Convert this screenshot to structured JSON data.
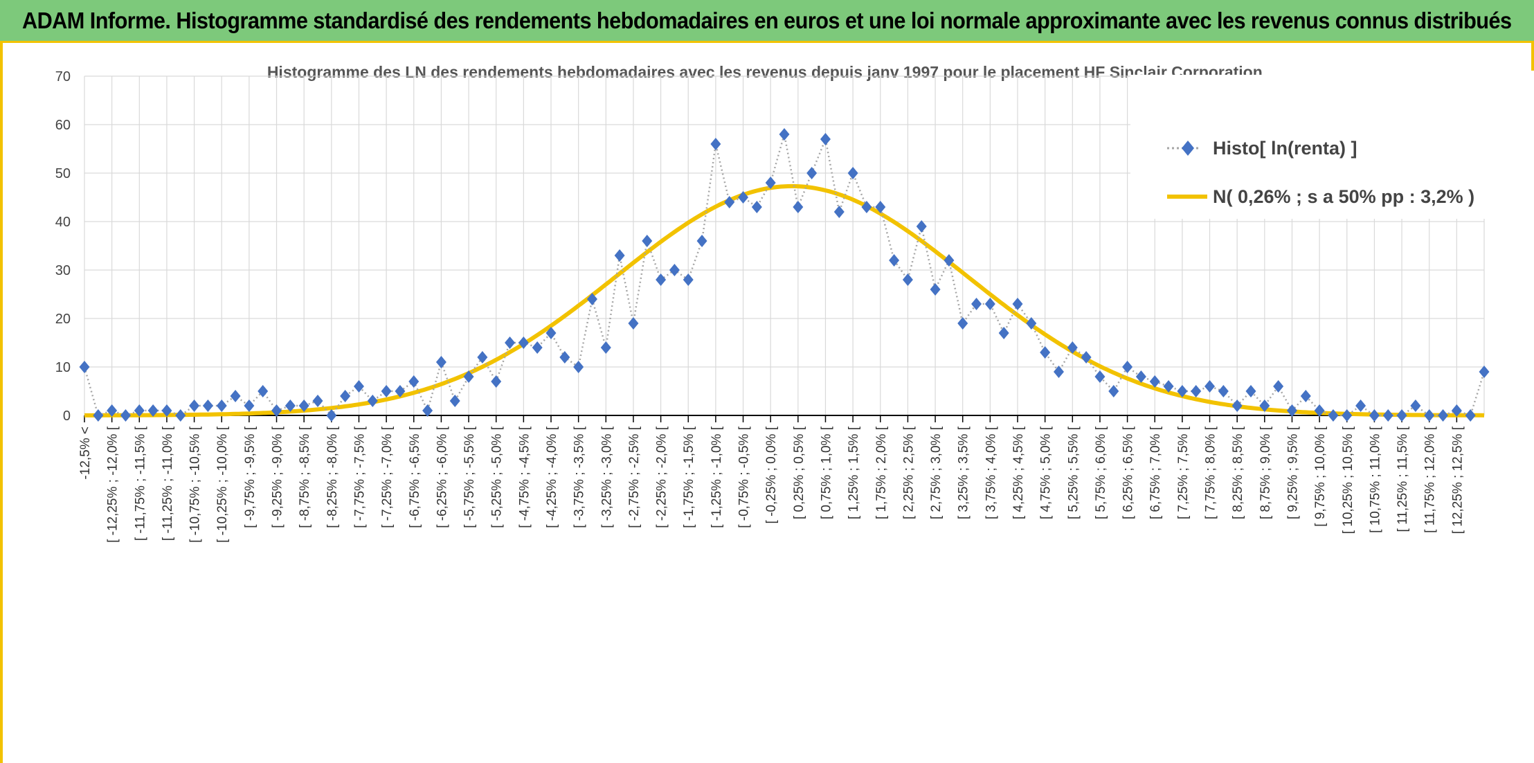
{
  "header": {
    "title": "ADAM Informe. Histogramme standardisé des rendements hebdomadaires en euros et une loi normale approximante avec les revenus connus distribués"
  },
  "colors": {
    "banner": "#7dc97b",
    "frame": "#f2c200",
    "histo_marker": "#4472c4",
    "histo_line": "#a6a6a6",
    "normal_curve": "#f2c200"
  },
  "chart_data": {
    "type": "line",
    "title": "Histogramme des LN des rendements hebdomadaires avec les revenus depuis janv 1997 pour le placement HF Sinclair Corporation.",
    "xlabel": "",
    "ylabel": "",
    "ylim": [
      0,
      70
    ],
    "yticks": [
      0,
      10,
      20,
      30,
      40,
      50,
      60,
      70
    ],
    "grid": true,
    "legend_position": "top-right",
    "x_tick_labels": [
      "-12,5% <",
      "[ -12,25% ; -12,0% [",
      "[ -11,75% ; -11,5% [",
      "[ -11,25% ; -11,0% [",
      "[ -10,75% ; -10,5% [",
      "[ -10,25% ; -10,0% [",
      "[ -9,75% ; -9,5% [",
      "[ -9,25% ; -9,0% [",
      "[ -8,75% ; -8,5% [",
      "[ -8,25% ; -8,0% [",
      "[ -7,75% ; -7,5% [",
      "[ -7,25% ; -7,0% [",
      "[ -6,75% ; -6,5% [",
      "[ -6,25% ; -6,0% [",
      "[ -5,75% ; -5,5% [",
      "[ -5,25% ; -5,0% [",
      "[ -4,75% ; -4,5% [",
      "[ -4,25% ; -4,0% [",
      "[ -3,75% ; -3,5% [",
      "[ -3,25% ; -3,0% [",
      "[ -2,75% ; -2,5% [",
      "[ -2,25% ; -2,0% [",
      "[ -1,75% ; -1,5% [",
      "[ -1,25% ; -1,0% [",
      "[ -0,75% ; -0,5% [",
      "[ -0,25% ; 0,0% [",
      "[ 0,25% ; 0,5% [",
      "[ 0,75% ; 1,0% [",
      "[ 1,25% ; 1,5% [",
      "[ 1,75% ; 2,0% [",
      "[ 2,25% ; 2,5% [",
      "[ 2,75% ; 3,0% [",
      "[ 3,25% ; 3,5% [",
      "[ 3,75% ; 4,0% [",
      "[ 4,25% ; 4,5% [",
      "[ 4,75% ; 5,0% [",
      "[ 5,25% ; 5,5% [",
      "[ 5,75% ; 6,0% [",
      "[ 6,25% ; 6,5% [",
      "[ 6,75% ; 7,0% [",
      "[ 7,25% ; 7,5% [",
      "[ 7,75% ; 8,0% [",
      "[ 8,25% ; 8,5% [",
      "[ 8,75% ; 9,0% [",
      "[ 9,25% ; 9,5% [",
      "[ 9,75% ; 10,0% [",
      "[ 10,25% ; 10,5% [",
      "[ 10,75% ; 11,0% [",
      "[ 11,25% ; 11,5% [",
      "[ 11,75% ; 12,0% [",
      "[ 12,25% ; 12,5% ["
    ],
    "series": [
      {
        "name": "Histo[ ln(renta) ]",
        "style": "dotted line with diamond markers",
        "values": [
          10,
          0,
          1,
          0,
          1,
          1,
          1,
          0,
          2,
          2,
          2,
          4,
          2,
          5,
          1,
          2,
          2,
          3,
          0,
          4,
          6,
          3,
          5,
          5,
          7,
          1,
          11,
          3,
          8,
          12,
          7,
          15,
          15,
          14,
          17,
          12,
          10,
          24,
          14,
          33,
          19,
          36,
          28,
          30,
          28,
          36,
          56,
          44,
          45,
          43,
          48,
          58,
          43,
          50,
          57,
          42,
          50,
          43,
          43,
          32,
          28,
          39,
          26,
          32,
          19,
          23,
          23,
          17,
          23,
          19,
          13,
          9,
          14,
          12,
          8,
          5,
          10,
          8,
          7,
          6,
          5,
          5,
          6,
          5,
          2,
          5,
          2,
          6,
          1,
          4,
          1,
          0,
          0,
          2,
          0,
          0,
          0,
          2,
          0,
          0,
          1,
          0,
          9
        ]
      },
      {
        "name": "N( 0,26% ; s a 50% pp : 3,2% )",
        "style": "solid smooth line",
        "distribution": {
          "mean_pct": 0.26,
          "sd_pct": 3.2,
          "peak": 47.3
        },
        "bin_width_pct": 0.25,
        "first_bin_center_pct": -12.625
      }
    ]
  }
}
